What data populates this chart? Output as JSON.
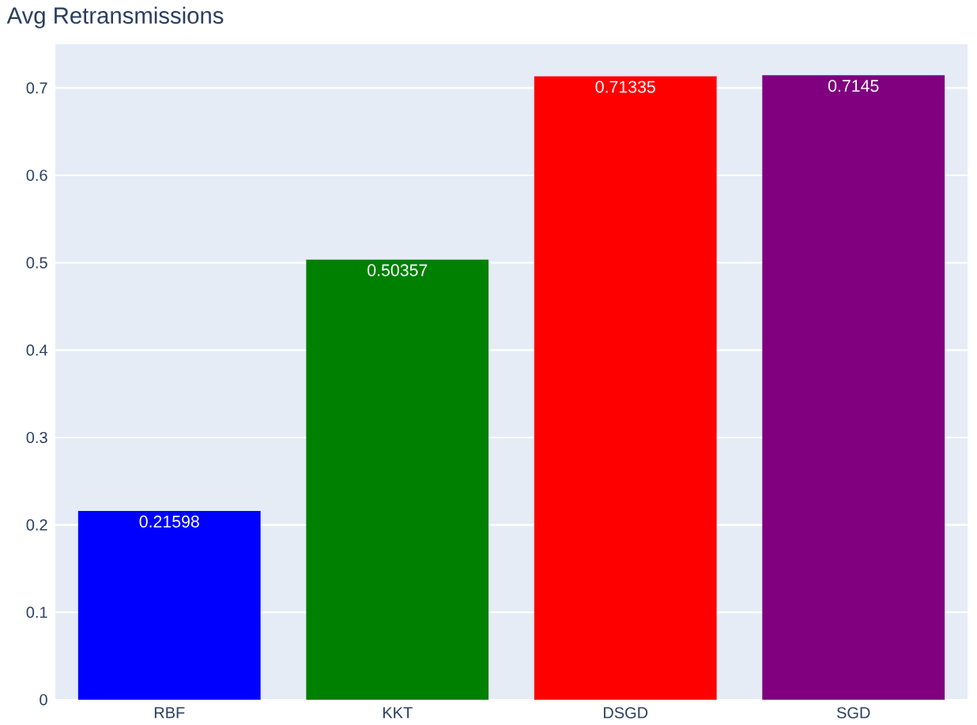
{
  "chart_data": {
    "type": "bar",
    "title": "Avg Retransmissions",
    "categories": [
      "RBF",
      "KKT",
      "DSGD",
      "SGD"
    ],
    "values": [
      0.21598,
      0.50357,
      0.71335,
      0.7145
    ],
    "colors": [
      "#0000ff",
      "#008000",
      "#ff0000",
      "#800080"
    ],
    "ylim": [
      0,
      0.75
    ],
    "yticks": [
      0,
      0.1,
      0.2,
      0.3,
      0.4,
      0.5,
      0.6,
      0.7
    ],
    "grid": "y",
    "data_labels": true
  }
}
